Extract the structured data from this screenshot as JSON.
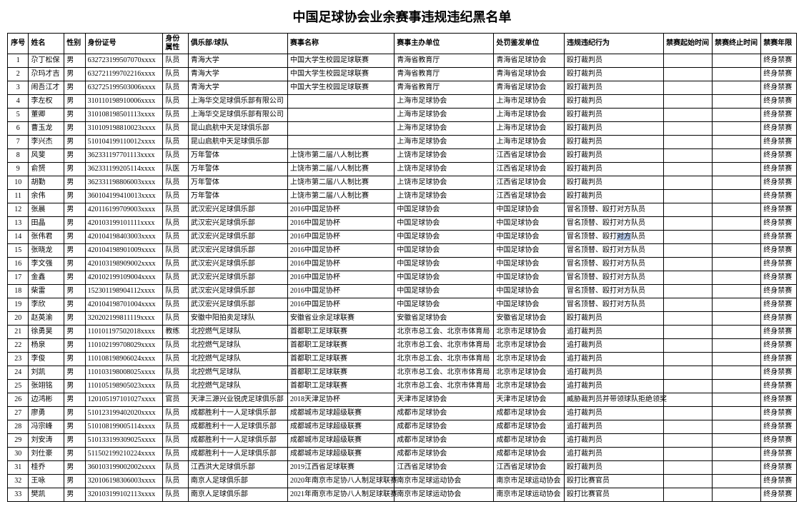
{
  "title": "中国足球协会业余赛事违规违纪黑名单",
  "columns": [
    "序号",
    "姓名",
    "性别",
    "身份证号",
    "身份属性",
    "俱乐部/球队",
    "赛事名称",
    "赛事主办单位",
    "处罚鉴发单位",
    "违规违纪行为",
    "禁赛起始时间",
    "禁赛终止时间",
    "禁赛年限"
  ],
  "rows": [
    [
      "1",
      "尕丁松保",
      "男",
      "632723199507070xxxx",
      "队员",
      "青海大学",
      "中国大学生校园足球联赛",
      "青海省教育厅",
      "青海省足球协会",
      "殴打裁判员",
      "",
      "",
      "终身禁赛"
    ],
    [
      "2",
      "尕玛才吉",
      "男",
      "632721199702216xxxx",
      "队员",
      "青海大学",
      "中国大学生校园足球联赛",
      "青海省教育厅",
      "青海省足球协会",
      "殴打裁判员",
      "",
      "",
      "终身禁赛"
    ],
    [
      "3",
      "闹吾江才",
      "男",
      "632725199503006xxxx",
      "队员",
      "青海大学",
      "中国大学生校园足球联赛",
      "青海省教育厅",
      "青海省足球协会",
      "殴打裁判员",
      "",
      "",
      "终身禁赛"
    ],
    [
      "4",
      "李左权",
      "男",
      "310110198910006xxxx",
      "队员",
      "上海华交足球俱乐部有限公司",
      "",
      "上海市足球协会",
      "上海市足球协会",
      "殴打裁判员",
      "",
      "",
      "终身禁赛"
    ],
    [
      "5",
      "董卿",
      "男",
      "310108198501113xxxx",
      "队员",
      "上海华交足球俱乐部有限公司",
      "",
      "上海市足球协会",
      "上海市足球协会",
      "殴打裁判员",
      "",
      "",
      "终身禁赛"
    ],
    [
      "6",
      "曹玉龙",
      "男",
      "310109198810023xxxx",
      "队员",
      "昆山启航中天足球俱乐部",
      "",
      "上海市足球协会",
      "上海市足球协会",
      "殴打裁判员",
      "",
      "",
      "终身禁赛"
    ],
    [
      "7",
      "李兴杰",
      "男",
      "510104199110012xxxx",
      "队员",
      "昆山启航中天足球俱乐部",
      "",
      "上海市足球协会",
      "上海市足球协会",
      "殴打裁判员",
      "",
      "",
      "终身禁赛"
    ],
    [
      "8",
      "风斐",
      "男",
      "362331197701113xxxx",
      "队员",
      "万年警体",
      "上饶市第二届八人制比赛",
      "上饶市足球协会",
      "江西省足球协会",
      "殴打裁判员",
      "",
      "",
      "终身禁赛"
    ],
    [
      "9",
      "俞赟",
      "男",
      "362331199205114xxxx",
      "队医",
      "万年警体",
      "上饶市第二届八人制比赛",
      "上饶市足球协会",
      "江西省足球协会",
      "殴打裁判员",
      "",
      "",
      "终身禁赛"
    ],
    [
      "10",
      "胡勤",
      "男",
      "362331198806003xxxx",
      "队员",
      "万年警体",
      "上饶市第二届八人制比赛",
      "上饶市足球协会",
      "江西省足球协会",
      "殴打裁判员",
      "",
      "",
      "终身禁赛"
    ],
    [
      "11",
      "余伟",
      "男",
      "360104199410013xxxx",
      "队员",
      "万年警体",
      "上饶市第二届八人制比赛",
      "上饶市足球协会",
      "江西省足球协会",
      "殴打裁判员",
      "",
      "",
      "终身禁赛"
    ],
    [
      "12",
      "张晨",
      "男",
      "420116199709003xxxx",
      "队员",
      "武汉宏兴足球俱乐部",
      "2016中国足协杯",
      "中国足球协会",
      "中国足球协会",
      "冒名顶替、殴打对方队员",
      "",
      "",
      "终身禁赛"
    ],
    [
      "13",
      "田晶",
      "男",
      "420103199101111xxxx",
      "队员",
      "武汉宏兴足球俱乐部",
      "2016中国足协杯",
      "中国足球协会",
      "中国足球协会",
      "冒名顶替、殴打对方队员",
      "",
      "",
      "终身禁赛"
    ],
    [
      "14",
      "张伟君",
      "男",
      "420104198403003xxxx",
      "队员",
      "武汉宏兴足球俱乐部",
      "2016中国足协杯",
      "中国足球协会",
      "中国足球协会",
      "冒名顶替、殴打对方队员",
      "",
      "",
      "终身禁赛"
    ],
    [
      "15",
      "张晓龙",
      "男",
      "420104198901009xxxx",
      "队员",
      "武汉宏兴足球俱乐部",
      "2016中国足协杯",
      "中国足球协会",
      "中国足球协会",
      "冒名顶替、殴打对方队员",
      "",
      "",
      "终身禁赛"
    ],
    [
      "16",
      "李文强",
      "男",
      "420103198909002xxxx",
      "队员",
      "武汉宏兴足球俱乐部",
      "2016中国足协杯",
      "中国足球协会",
      "中国足球协会",
      "冒名顶替、殴打对方队员",
      "",
      "",
      "终身禁赛"
    ],
    [
      "17",
      "金鑫",
      "男",
      "420102199109004xxxx",
      "队员",
      "武汉宏兴足球俱乐部",
      "2016中国足协杯",
      "中国足球协会",
      "中国足球协会",
      "冒名顶替、殴打对方队员",
      "",
      "",
      "终身禁赛"
    ],
    [
      "18",
      "柴雷",
      "男",
      "152301198904112xxxx",
      "队员",
      "武汉宏兴足球俱乐部",
      "2016中国足协杯",
      "中国足球协会",
      "中国足球协会",
      "冒名顶替、殴打对方队员",
      "",
      "",
      "终身禁赛"
    ],
    [
      "19",
      "李欣",
      "男",
      "420104198701004xxxx",
      "队员",
      "武汉宏兴足球俱乐部",
      "2016中国足协杯",
      "中国足球协会",
      "中国足球协会",
      "冒名顶替、殴打对方队员",
      "",
      "",
      "终身禁赛"
    ],
    [
      "20",
      "赵英渝",
      "男",
      "320202199811119xxxx",
      "队员",
      "安徽中阳拍卖足球队",
      "安徽省业余足球联赛",
      "安徽省足球协会",
      "安徽省足球协会",
      "殴打裁判员",
      "",
      "",
      "终身禁赛"
    ],
    [
      "21",
      "徐勇昊",
      "男",
      "110101197502018xxxx",
      "教练",
      "北控燃气足球队",
      "首都职工足球联赛",
      "北京市总工会、北京市体育局",
      "北京市足球协会",
      "追打裁判员",
      "",
      "",
      "终身禁赛"
    ],
    [
      "22",
      "杨泉",
      "男",
      "110102199708029xxxx",
      "队员",
      "北控燃气足球队",
      "首都职工足球联赛",
      "北京市总工会、北京市体育局",
      "北京市足球协会",
      "追打裁判员",
      "",
      "",
      "终身禁赛"
    ],
    [
      "23",
      "李俊",
      "男",
      "110108198906024xxxx",
      "队员",
      "北控燃气足球队",
      "首都职工足球联赛",
      "北京市总工会、北京市体育局",
      "北京市足球协会",
      "追打裁判员",
      "",
      "",
      "终身禁赛"
    ],
    [
      "24",
      "刘凯",
      "男",
      "110103198008025xxxx",
      "队员",
      "北控燃气足球队",
      "首都职工足球联赛",
      "北京市总工会、北京市体育局",
      "北京市足球协会",
      "追打裁判员",
      "",
      "",
      "终身禁赛"
    ],
    [
      "25",
      "张翊铭",
      "男",
      "110105198905023xxxx",
      "队员",
      "北控燃气足球队",
      "首都职工足球联赛",
      "北京市总工会、北京市体育局",
      "北京市足球协会",
      "追打裁判员",
      "",
      "",
      "终身禁赛"
    ],
    [
      "26",
      "边鸿彬",
      "男",
      "120105197101027xxxx",
      "官员",
      "天津三源兴业锐虎足球俱乐部",
      "2018天津足协杯",
      "天津市足球协会",
      "天津市足球协会",
      "威胁裁判员并带领球队拒绝领奖",
      "",
      "",
      "终身禁赛"
    ],
    [
      "27",
      "廖勇",
      "男",
      "510123199402020xxxx",
      "队员",
      "成都胜利十一人足球俱乐部",
      "成都城市足球超级联赛",
      "成都市足球协会",
      "成都市足球协会",
      "追打裁判员",
      "",
      "",
      "终身禁赛"
    ],
    [
      "28",
      "冯宗峰",
      "男",
      "510108199005114xxxx",
      "队员",
      "成都胜利十一人足球俱乐部",
      "成都城市足球超级联赛",
      "成都市足球协会",
      "成都市足球协会",
      "追打裁判员",
      "",
      "",
      "终身禁赛"
    ],
    [
      "29",
      "刘安涛",
      "男",
      "510133199309025xxxx",
      "队员",
      "成都胜利十一人足球俱乐部",
      "成都城市足球超级联赛",
      "成都市足球协会",
      "成都市足球协会",
      "追打裁判员",
      "",
      "",
      "终身禁赛"
    ],
    [
      "30",
      "刘仕豪",
      "男",
      "511502199210224xxxx",
      "队员",
      "成都胜利十一人足球俱乐部",
      "成都城市足球超级联赛",
      "成都市足球协会",
      "成都市足球协会",
      "追打裁判员",
      "",
      "",
      "终身禁赛"
    ],
    [
      "31",
      "桂乔",
      "男",
      "360103199002002xxxx",
      "队员",
      "江西洪大足球俱乐部",
      "2019江西省足球联赛",
      "江西省足球协会",
      "江西省足球协会",
      "殴打裁判员",
      "",
      "",
      "终身禁赛"
    ],
    [
      "32",
      "王咏",
      "男",
      "320106198306003xxxx",
      "队员",
      "南京人足球俱乐部",
      "2020年南京市足协八人制足球联赛",
      "南京市足球运动协会",
      "南京市足球运动协会",
      "殴打比赛官员",
      "",
      "",
      "终身禁赛"
    ],
    [
      "33",
      "樊凯",
      "男",
      "320103199102113xxxx",
      "队员",
      "南京人足球俱乐部",
      "2021年南京市足协八人制足球联赛",
      "南京市足球运动协会",
      "南京市足球运动协会",
      "殴打比赛官员",
      "",
      "",
      "终身禁赛"
    ]
  ],
  "highlight": {
    "row": 13,
    "col": 9
  }
}
